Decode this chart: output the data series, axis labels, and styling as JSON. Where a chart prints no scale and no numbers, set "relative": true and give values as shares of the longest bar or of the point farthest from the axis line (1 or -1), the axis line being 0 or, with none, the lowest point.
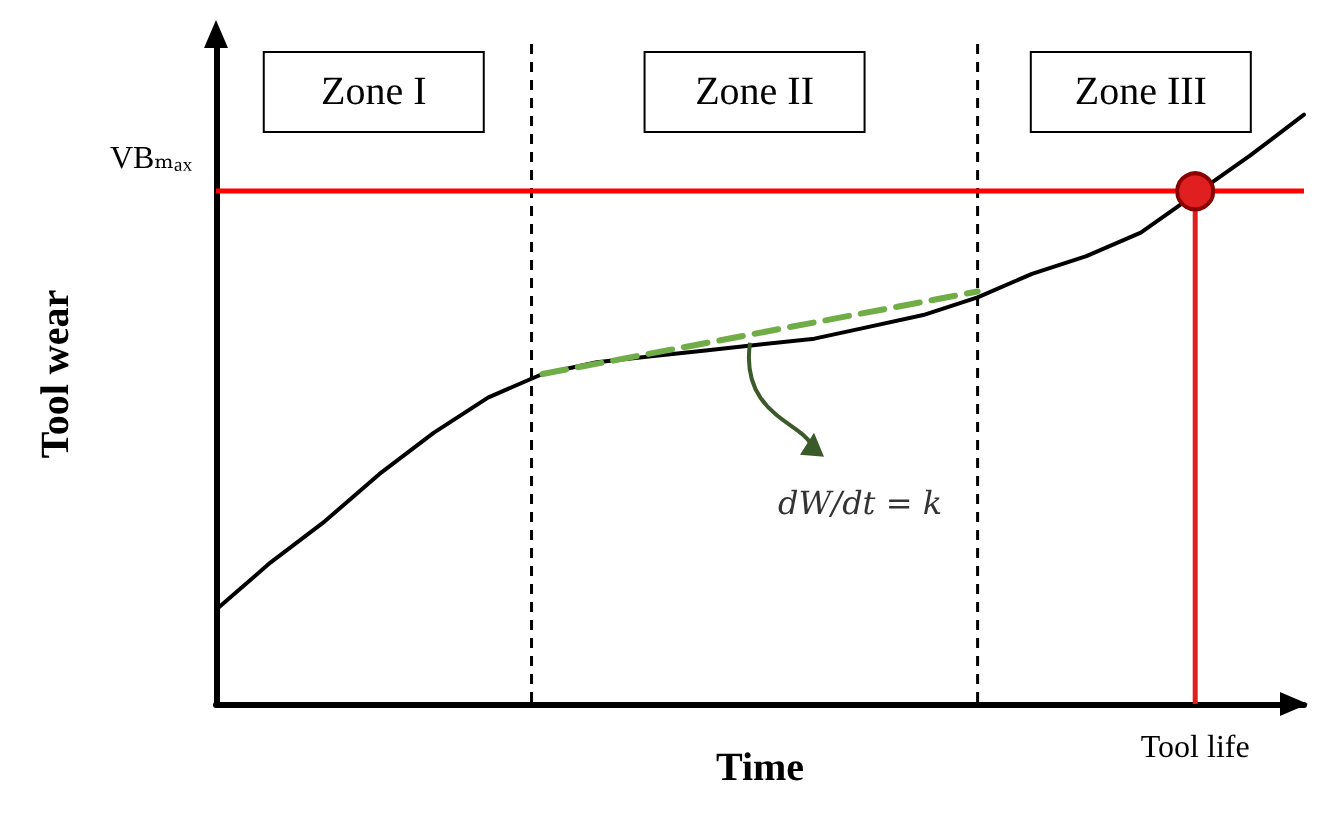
{
  "chart_data": {
    "type": "line",
    "relative": true,
    "xlabel": "Time",
    "ylabel": "Tool wear",
    "tick_labels": false,
    "grid": false,
    "marker": "none",
    "categories": [
      null,
      null,
      null,
      null,
      null,
      null,
      null,
      null,
      null,
      null,
      null,
      null,
      null,
      null,
      null,
      null,
      null,
      null,
      null,
      null,
      null
    ],
    "series": [
      {
        "color": "#000000",
        "values": [
          0.16,
          0.24,
          0.31,
          0.39,
          0.46,
          0.52,
          0.56,
          0.58,
          0.59,
          0.6,
          0.61,
          0.62,
          0.64,
          0.66,
          0.69,
          0.73,
          0.76,
          0.8,
          null,
          0.93,
          1
        ]
      },
      {
        "color": "#70ad47",
        "line_style": "dashed",
        "values": [
          null,
          null,
          null,
          null,
          null,
          null,
          0.56,
          null,
          null,
          null,
          null,
          null,
          null,
          null,
          0.7,
          null,
          null,
          null,
          null,
          null,
          null
        ]
      },
      {
        "color": "#e02020",
        "marker": "circle",
        "values": [
          null,
          null,
          null,
          null,
          null,
          null,
          null,
          null,
          null,
          null,
          null,
          null,
          null,
          null,
          null,
          null,
          null,
          null,
          0.87,
          null,
          null
        ]
      }
    ],
    "ref_lines": [
      {
        "axis": "y",
        "value": 0.87,
        "label": "VBₘₐₓ",
        "color": "#ff0000",
        "line_style": "solid"
      }
    ],
    "annotations": [
      "Zone I",
      "Zone II",
      "Zone III",
      "dW/dt = k",
      "Tool life"
    ]
  }
}
